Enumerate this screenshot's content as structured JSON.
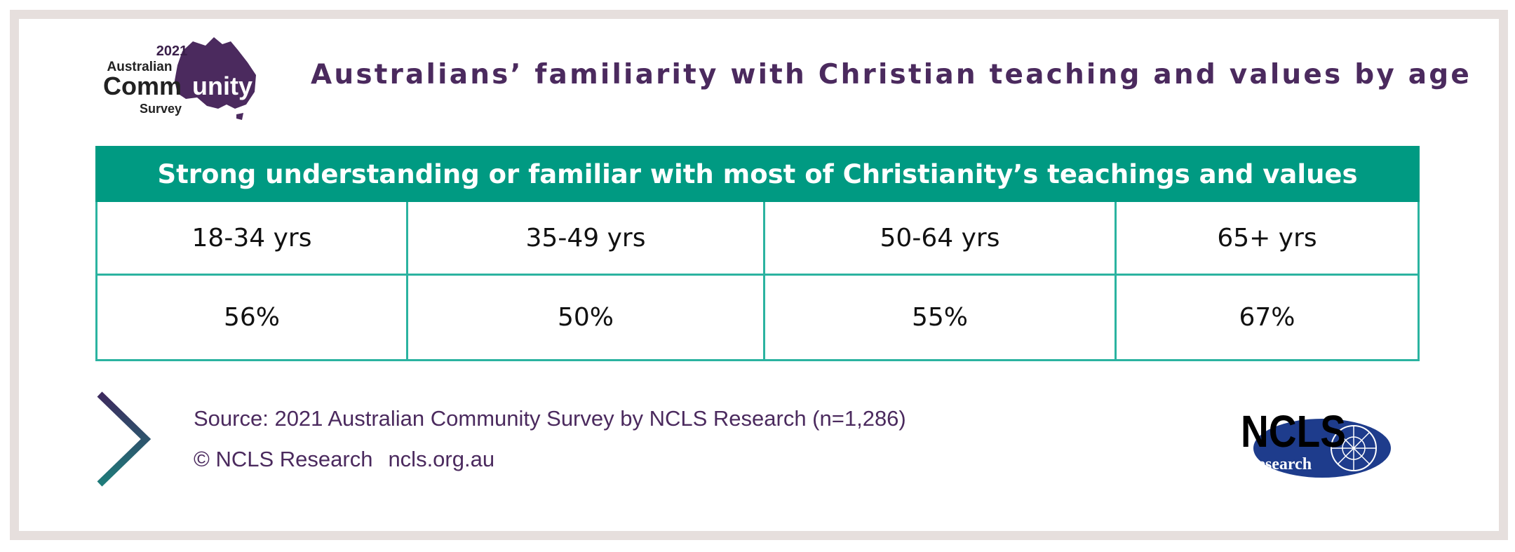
{
  "header": {
    "title": "Australians’ familiarity with Christian teaching and values by age",
    "logo_acs": {
      "year": "2021",
      "line1": "Australian",
      "line2_left": "Comm",
      "line2_right": "unity",
      "line3": "Survey"
    }
  },
  "chart_data": {
    "type": "table",
    "title": "Strong understanding or familiar with most of Christianity’s teachings and values",
    "categories": [
      "18-34  yrs",
      "35-49  yrs",
      "50-64  yrs",
      "65+  yrs"
    ],
    "values": [
      "56%",
      "50%",
      "55%",
      "67%"
    ]
  },
  "footer": {
    "source": "Source: 2021 Australian Community Survey by NCLS Research (n=1,286)",
    "copyright": "© NCLS Research",
    "website": "ncls.org.au",
    "logo_ncls": {
      "name": "NCLS",
      "sub": "research"
    }
  },
  "colors": {
    "purple": "#4b2a5e",
    "teal": "#009a82",
    "teal_border": "#2bb3a0",
    "navy": "#1e3c8c",
    "frame": "#e6dfdd"
  }
}
